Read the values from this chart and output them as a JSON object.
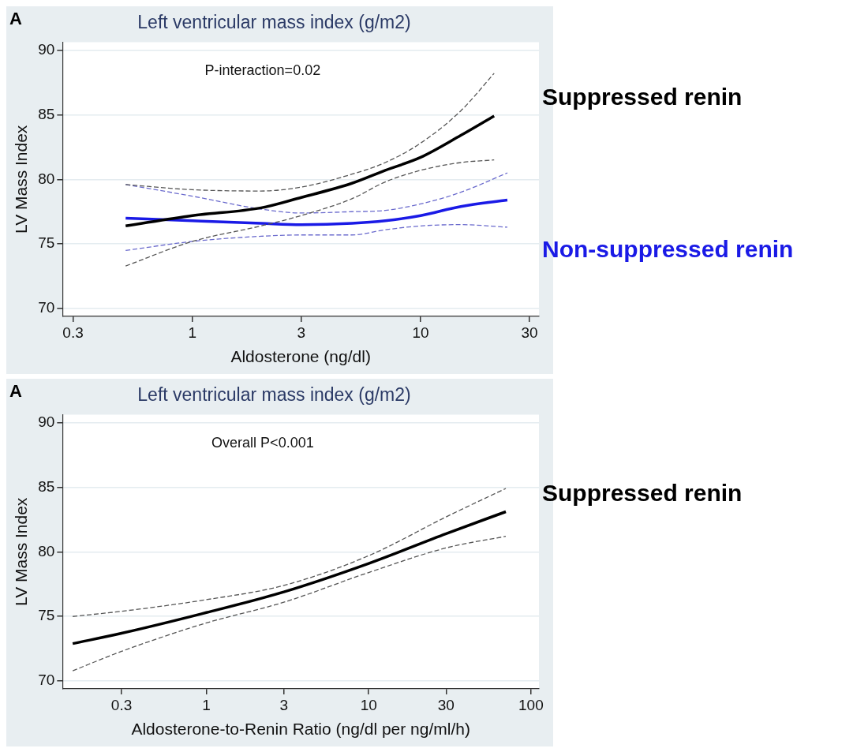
{
  "chart_data": [
    {
      "type": "line",
      "title": "Left ventricular mass index (g/m2)",
      "xlabel": "Aldosterone (ng/dl)",
      "ylabel": "LV Mass Index",
      "annotations": [
        "A",
        "P-interaction=0.02"
      ],
      "log": "x",
      "xlim": [
        0.27,
        33
      ],
      "xticks": [
        0.3,
        1,
        3,
        10,
        30
      ],
      "ylim": [
        69.4,
        90.6
      ],
      "yticks": [
        70,
        75,
        80,
        85,
        90
      ],
      "grid": "y",
      "legend": false,
      "marker": "none",
      "series": [
        {
          "name": "Suppressed renin",
          "color": "#000000",
          "line_style": "solid",
          "x": [
            0.51,
            1,
            2,
            3,
            5,
            7,
            10,
            15,
            21
          ],
          "values": [
            76.4,
            77.2,
            77.8,
            78.6,
            79.7,
            80.7,
            81.7,
            83.4,
            84.9
          ]
        },
        {
          "color": "#555555",
          "line_style": "dashed",
          "x": [
            0.51,
            1,
            2,
            3,
            5,
            7,
            10,
            15,
            21
          ],
          "values": [
            79.6,
            79.2,
            79.1,
            79.4,
            80.4,
            81.3,
            82.8,
            85.3,
            88.2
          ]
        },
        {
          "color": "#555555",
          "line_style": "dashed",
          "x": [
            0.51,
            1,
            2,
            3,
            5,
            7,
            10,
            15,
            21
          ],
          "values": [
            73.3,
            75.2,
            76.4,
            77.2,
            78.5,
            79.8,
            80.7,
            81.3,
            81.5
          ]
        },
        {
          "name": "Non-suppressed renin",
          "color": "#1a1ae6",
          "line_style": "solid",
          "x": [
            0.51,
            1,
            2,
            3,
            5,
            7,
            10,
            15,
            24
          ],
          "values": [
            77.0,
            76.8,
            76.6,
            76.5,
            76.6,
            76.8,
            77.2,
            77.9,
            78.4
          ]
        },
        {
          "color": "#6a6acd",
          "line_style": "dashed",
          "x": [
            0.51,
            1,
            2,
            3,
            5,
            7,
            10,
            15,
            24
          ],
          "values": [
            79.6,
            78.7,
            77.7,
            77.4,
            77.5,
            77.6,
            78.1,
            79.0,
            80.5
          ]
        },
        {
          "color": "#6a6acd",
          "line_style": "dashed",
          "x": [
            0.51,
            1,
            2,
            3,
            5,
            7,
            10,
            15,
            24
          ],
          "values": [
            74.5,
            75.2,
            75.6,
            75.7,
            75.7,
            76.1,
            76.4,
            76.5,
            76.3
          ]
        }
      ]
    },
    {
      "type": "line",
      "title": "Left ventricular mass index (g/m2)",
      "xlabel": "Aldosterone-to-Renin Ratio (ng/dl per ng/ml/h)",
      "ylabel": "LV Mass Index",
      "annotations": [
        "A",
        "Overall P<0.001"
      ],
      "log": "x",
      "xlim": [
        0.13,
        112
      ],
      "xticks": [
        0.3,
        1,
        3,
        10,
        30,
        100
      ],
      "ylim": [
        69.4,
        90.6
      ],
      "yticks": [
        70,
        75,
        80,
        85,
        90
      ],
      "grid": "y",
      "legend": false,
      "marker": "none",
      "series": [
        {
          "name": "Suppressed renin",
          "color": "#000000",
          "line_style": "solid",
          "x": [
            0.15,
            0.3,
            1,
            3,
            10,
            30,
            70
          ],
          "values": [
            72.9,
            73.7,
            75.3,
            76.9,
            79.1,
            81.4,
            83.1
          ]
        },
        {
          "color": "#555555",
          "line_style": "dashed",
          "x": [
            0.15,
            0.3,
            1,
            3,
            10,
            30,
            70
          ],
          "values": [
            75.0,
            75.4,
            76.3,
            77.4,
            79.7,
            82.7,
            84.9
          ]
        },
        {
          "color": "#555555",
          "line_style": "dashed",
          "x": [
            0.15,
            0.3,
            1,
            3,
            10,
            30,
            70
          ],
          "values": [
            70.8,
            72.3,
            74.5,
            76.1,
            78.4,
            80.3,
            81.2
          ]
        }
      ]
    }
  ]
}
